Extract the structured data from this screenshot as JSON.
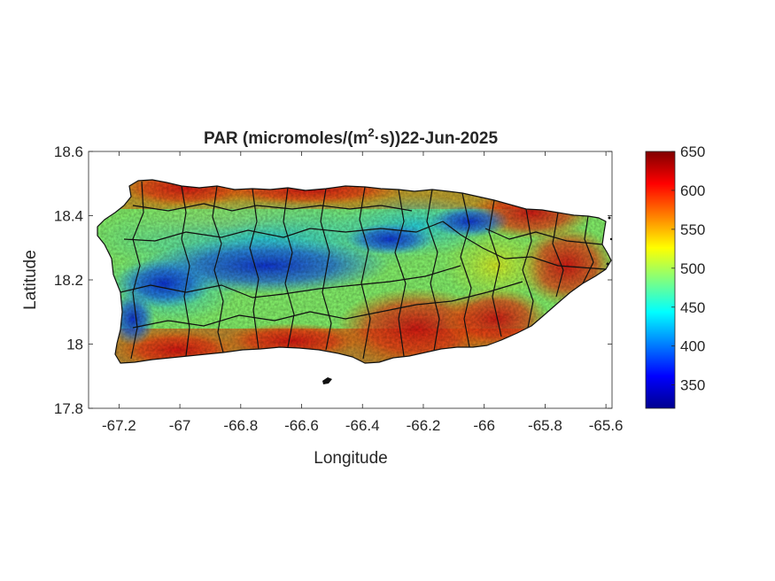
{
  "chart_data": {
    "type": "heatmap",
    "title_main": "PAR (micromoles/(m",
    "title_sup": "2",
    "title_rest": "·s))22-Jun-2025",
    "xlabel": "Longitude",
    "ylabel": "Latitude",
    "xlim": [
      -67.3,
      -65.58
    ],
    "ylim": [
      17.8,
      18.6
    ],
    "xticks": [
      -67.2,
      -67,
      -66.8,
      -66.6,
      -66.4,
      -66.2,
      -66,
      -65.8,
      -65.6
    ],
    "xtick_labels": [
      "-67.2",
      "-67",
      "-66.8",
      "-66.6",
      "-66.4",
      "-66.2",
      "-66",
      "-65.8",
      "-65.6"
    ],
    "yticks": [
      17.8,
      18,
      18.2,
      18.4,
      18.6
    ],
    "ytick_labels": [
      "17.8",
      "18",
      "18.2",
      "18.4",
      "18.6"
    ],
    "colorbar": {
      "colormap": "jet",
      "limits": [
        320,
        650
      ],
      "ticks": [
        350,
        400,
        450,
        500,
        550,
        600,
        650
      ],
      "tick_labels": [
        "350",
        "400",
        "450",
        "500",
        "550",
        "600",
        "650"
      ]
    }
  }
}
